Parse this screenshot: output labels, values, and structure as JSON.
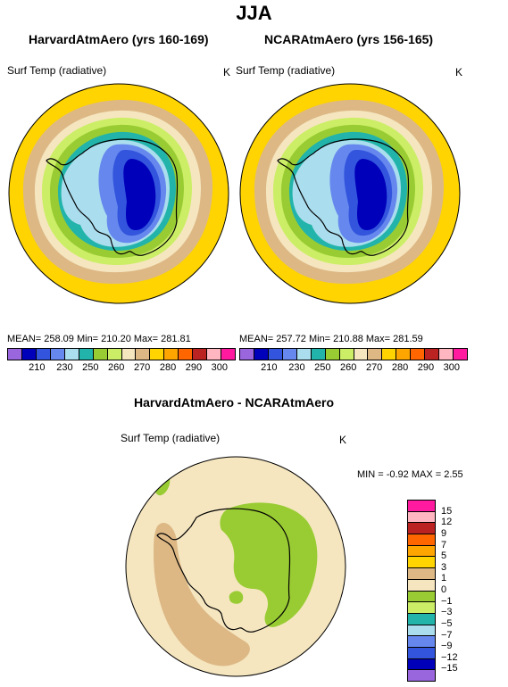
{
  "season": "JJA",
  "panels": [
    {
      "title": "HarvardAtmAero (yrs 160-169)",
      "variable": "Surf Temp (radiative)",
      "units": "K",
      "stats": "MEAN= 258.09   Min= 210.20   Max= 281.81"
    },
    {
      "title": "NCARAtmAero (yrs 156-165)",
      "variable": "Surf Temp (radiative)",
      "units": "K",
      "stats": "MEAN= 257.72   Min= 210.88   Max= 281.59"
    }
  ],
  "top_colorbar": {
    "colors": [
      "#9966dd",
      "#0000bb",
      "#3355dd",
      "#6688ee",
      "#aaddee",
      "#22b4aa",
      "#99cc33",
      "#ccee66",
      "#f5e6c0",
      "#ddb885",
      "#ffd400",
      "#ffa500",
      "#ff6600",
      "#bb2222",
      "#ffb6c1",
      "#ff1aa0"
    ],
    "tick_labels": [
      "210",
      "230",
      "250",
      "260",
      "270",
      "280",
      "290",
      "300"
    ]
  },
  "diff_panel": {
    "title": "HarvardAtmAero - NCARAtmAero",
    "variable": "Surf Temp (radiative)",
    "units": "K",
    "stats": "MIN =   -0.92  MAX =    2.55",
    "colorbar": {
      "colors": [
        "#ff1aa0",
        "#ffb6c1",
        "#bb2222",
        "#ff6600",
        "#ffa500",
        "#ffd400",
        "#ddb885",
        "#f5e6c0",
        "#99cc33",
        "#ccee66",
        "#22b4aa",
        "#aaddee",
        "#6688ee",
        "#3355dd",
        "#0000bb",
        "#9966dd"
      ],
      "labels": [
        "15",
        "12",
        "9",
        "7",
        "5",
        "3",
        "1",
        "0",
        "−1",
        "−3",
        "−5",
        "−7",
        "−9",
        "−12",
        "−15"
      ]
    }
  },
  "colors": {
    "ocean_warm": "#ffd400",
    "sea_ice_edge": "#ddb885",
    "diff_background": "#f5e6c0",
    "diff_warm": "#ddb885",
    "diff_cool": "#99cc33",
    "coastline": "#000000"
  }
}
